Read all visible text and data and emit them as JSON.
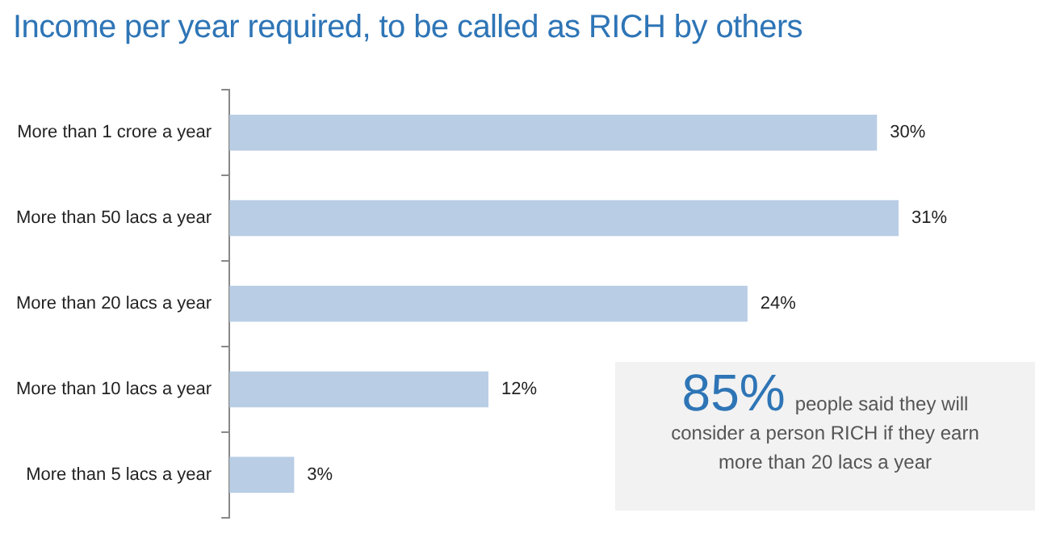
{
  "chart_data": {
    "type": "bar",
    "orientation": "horizontal",
    "title": "Income per year required, to be called as RICH by others",
    "categories": [
      "More than 1 crore a year",
      "More than 50 lacs a year",
      "More than 20 lacs a year",
      "More than 10 lacs a year",
      "More than 5 lacs a year"
    ],
    "values": [
      30,
      31,
      24,
      12,
      3
    ],
    "value_labels": [
      "30%",
      "31%",
      "24%",
      "12%",
      "3%"
    ],
    "color": "#b9cde5",
    "legend": false,
    "tick_labels": "y",
    "annotations": [
      "85%",
      "people said they will consider a person RICH if they earn more than 20 lacs a year"
    ]
  }
}
